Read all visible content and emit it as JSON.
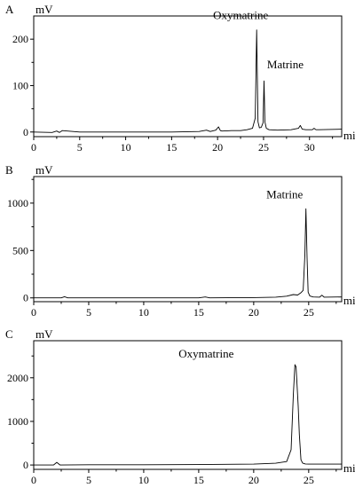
{
  "chart_data": [
    {
      "type": "line",
      "panel_label": "A",
      "xlabel": "min",
      "ylabel": "mV",
      "xlim": [
        0,
        33.5
      ],
      "ylim": [
        -10,
        250
      ],
      "xticks": [
        0,
        5,
        10,
        15,
        20,
        25,
        30
      ],
      "yticks": [
        0,
        100,
        200
      ],
      "series": [
        {
          "x": [
            0,
            2,
            2.5,
            2.8,
            3.1,
            5,
            10,
            15,
            18,
            18.8,
            19.2,
            19.8,
            20.1,
            20.3,
            20.5,
            21.5,
            22.5,
            23.2,
            23.8,
            24.1,
            24.25,
            24.4,
            24.55,
            24.75,
            24.95,
            25.05,
            25.15,
            25.3,
            25.6,
            26.5,
            28,
            28.8,
            29.0,
            29.2,
            29.6,
            30.3,
            30.5,
            30.7,
            31,
            33.5
          ],
          "y": [
            0,
            -1,
            2,
            -1,
            3,
            0,
            0,
            0,
            1,
            4,
            1,
            4,
            11,
            3,
            2,
            3,
            3,
            5,
            8,
            30,
            220,
            22,
            9,
            10,
            20,
            110,
            22,
            8,
            5,
            4,
            5,
            8,
            14,
            6,
            5,
            5,
            8,
            5,
            5,
            6
          ]
        }
      ],
      "annotations": [
        {
          "text": "Oxymatrine",
          "x": 24.25,
          "y": 220
        },
        {
          "text": "Matrine",
          "x": 25.05,
          "y": 110
        }
      ]
    },
    {
      "type": "line",
      "panel_label": "B",
      "xlabel": "min",
      "ylabel": "mV",
      "xlim": [
        0,
        28
      ],
      "ylim": [
        -40,
        1280
      ],
      "xticks": [
        0,
        5,
        10,
        15,
        20,
        25
      ],
      "yticks": [
        0,
        500,
        1000
      ],
      "series": [
        {
          "x": [
            0,
            2.5,
            2.8,
            3.1,
            5,
            10,
            15,
            15.6,
            16,
            20,
            22,
            23,
            23.6,
            24,
            24.3,
            24.5,
            24.65,
            24.75,
            24.85,
            24.95,
            25.1,
            25.4,
            26,
            26.2,
            26.4,
            28
          ],
          "y": [
            0,
            0,
            12,
            0,
            0,
            0,
            0,
            10,
            0,
            3,
            8,
            18,
            35,
            30,
            55,
            80,
            450,
            940,
            420,
            60,
            20,
            10,
            8,
            28,
            8,
            10
          ]
        }
      ],
      "annotations": [
        {
          "text": "Matrine",
          "x": 24.75,
          "y": 940
        }
      ]
    },
    {
      "type": "line",
      "panel_label": "C",
      "xlabel": "min",
      "ylabel": "mV",
      "xlim": [
        0,
        28
      ],
      "ylim": [
        -100,
        2850
      ],
      "xticks": [
        0,
        5,
        10,
        15,
        20,
        25
      ],
      "yticks": [
        0,
        1000,
        2000
      ],
      "series": [
        {
          "x": [
            0,
            1.8,
            2.1,
            2.4,
            5,
            10,
            15,
            20,
            22,
            23,
            23.4,
            23.6,
            23.75,
            23.85,
            24.05,
            24.15,
            24.3,
            24.45,
            24.7,
            25,
            28
          ],
          "y": [
            0,
            0,
            60,
            0,
            5,
            5,
            10,
            20,
            40,
            80,
            350,
            1600,
            2300,
            2250,
            1350,
            700,
            120,
            45,
            25,
            20,
            20
          ]
        }
      ],
      "annotations": [
        {
          "text": "Oxymatrine",
          "x": 23.75,
          "y": 2300
        }
      ]
    }
  ]
}
